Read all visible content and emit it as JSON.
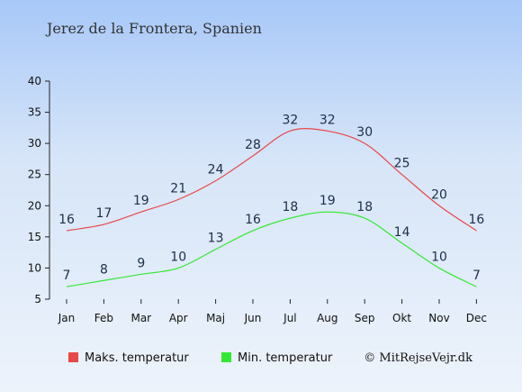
{
  "chart_data": {
    "type": "line",
    "title": "Jerez de la Frontera, Spanien",
    "categories": [
      "Jan",
      "Feb",
      "Mar",
      "Apr",
      "Maj",
      "Jun",
      "Jul",
      "Aug",
      "Sep",
      "Okt",
      "Nov",
      "Dec"
    ],
    "ylim": [
      5,
      40
    ],
    "yticks": [
      5,
      10,
      15,
      20,
      25,
      30,
      35,
      40
    ],
    "grid": false,
    "legend_position": "bottom",
    "series": [
      {
        "name": "Maks. temperatur",
        "color": "#e84848",
        "values": [
          16,
          17,
          19,
          21,
          24,
          28,
          32,
          32,
          30,
          25,
          20,
          16
        ]
      },
      {
        "name": "Min. temperatur",
        "color": "#33e833",
        "values": [
          7,
          8,
          9,
          10,
          13,
          16,
          18,
          19,
          18,
          14,
          10,
          7
        ]
      }
    ]
  },
  "credit": "© MitRejseVejr.dk"
}
